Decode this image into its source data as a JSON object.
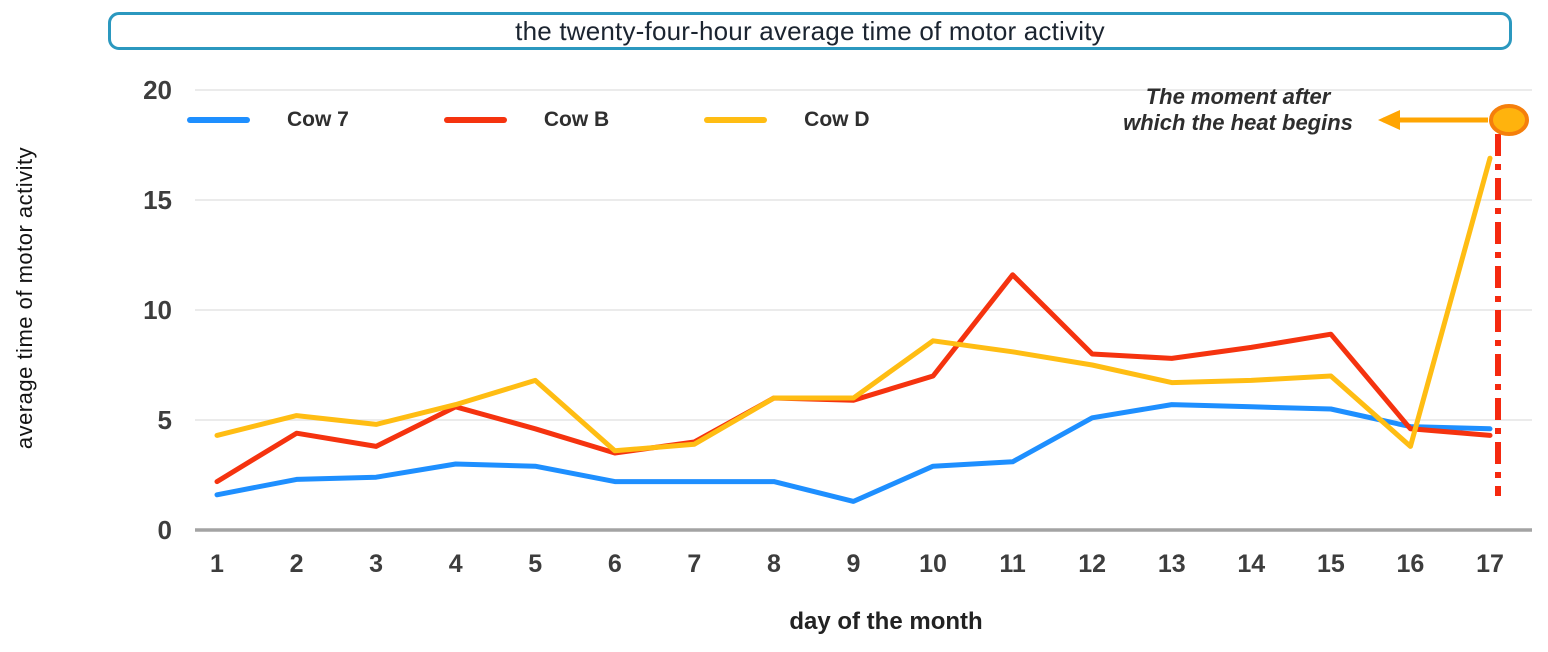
{
  "title": "the twenty-four-hour average time of motor activity",
  "y_axis_label": "average time of motor activity",
  "x_axis_label": "day of the month",
  "annotation": {
    "line1": "The moment after",
    "line2": "which the heat begins"
  },
  "colors": {
    "title_border": "#2B98BF",
    "grid": "#EBEBEB",
    "axis": "#A3A3A3",
    "tick_text": "#3D3D3D",
    "arrow": "#FFA502",
    "marker_fill": "#FFB30D",
    "marker_stroke": "#F57F0B",
    "event_line": "#F5290F"
  },
  "chart_data": {
    "type": "line",
    "title": "the twenty-four-hour average time of motor activity",
    "xlabel": "day of the month",
    "ylabel": "average time of motor activity",
    "x": [
      1,
      2,
      3,
      4,
      5,
      6,
      7,
      8,
      9,
      10,
      11,
      12,
      13,
      14,
      15,
      16,
      17
    ],
    "ylim": [
      0,
      20
    ],
    "yticks": [
      0,
      5,
      10,
      15,
      20
    ],
    "grid": true,
    "legend_position": "top-left",
    "series": [
      {
        "name": "Cow 7",
        "color": "#1E8FFF",
        "values": [
          1.6,
          2.3,
          2.4,
          3.0,
          2.9,
          2.2,
          2.2,
          2.2,
          1.3,
          2.9,
          3.1,
          5.1,
          5.7,
          5.6,
          5.5,
          4.7,
          4.6
        ]
      },
      {
        "name": "Cow B",
        "color": "#F5330F",
        "values": [
          2.2,
          4.4,
          3.8,
          5.6,
          4.6,
          3.5,
          4.0,
          6.0,
          5.9,
          7.0,
          11.6,
          8.0,
          7.8,
          8.3,
          8.9,
          4.6,
          4.3
        ]
      },
      {
        "name": "Cow D",
        "color": "#FFBD13",
        "values": [
          4.3,
          5.2,
          4.8,
          5.7,
          6.8,
          3.6,
          3.9,
          6.0,
          6.0,
          8.6,
          8.1,
          7.5,
          6.7,
          6.8,
          7.0,
          3.8,
          16.9
        ]
      }
    ],
    "event_marker": {
      "label": "The moment after which the heat begins",
      "day": 17,
      "line_style": "dash-dot",
      "line_color": "#F5290F",
      "marker_color": "#FFB30D"
    }
  }
}
